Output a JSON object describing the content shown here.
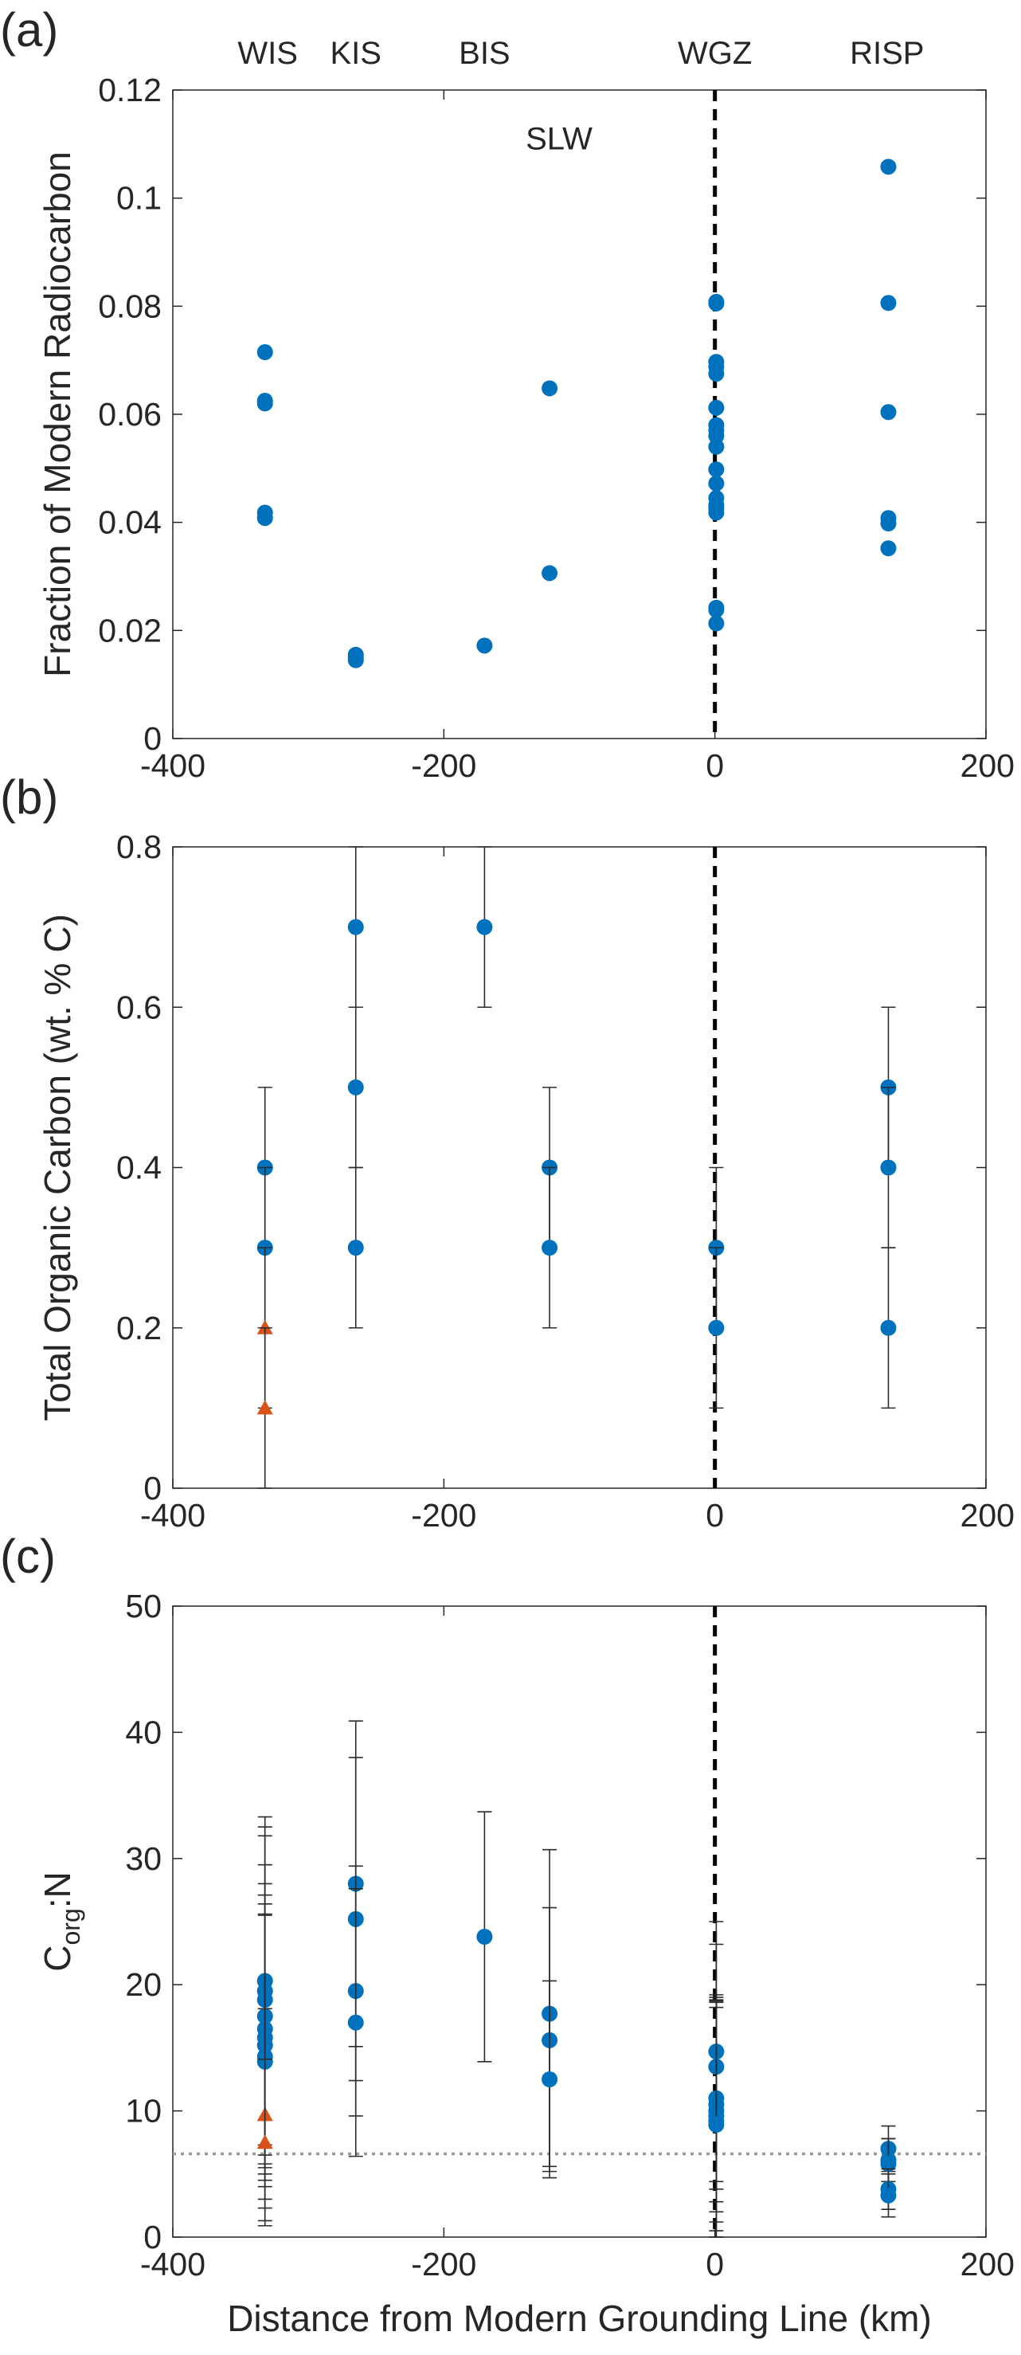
{
  "chart_data": [
    {
      "panel_label": "(a)",
      "type": "scatter",
      "title": "",
      "xlabel": "",
      "ylabel": "Fraction of Modern Radiocarbon",
      "xlim": [
        -400,
        200
      ],
      "ylim": [
        0,
        0.12
      ],
      "xticks": [
        "-400",
        "-200",
        "0",
        "200"
      ],
      "yticks": [
        "0",
        "0.02",
        "0.04",
        "0.06",
        "0.08",
        "0.1",
        "0.12"
      ],
      "grid": false,
      "colors": {
        "marker": "#0072bd",
        "reference_line": "#000000"
      },
      "reference_lines": [
        {
          "orientation": "vertical",
          "x": 0,
          "style": "dashed"
        }
      ],
      "site_labels": [
        {
          "text": "WIS",
          "x": -330
        },
        {
          "text": "KIS",
          "x": -265
        },
        {
          "text": "BIS",
          "x": -170
        },
        {
          "text": "WGZ",
          "x": 0
        },
        {
          "text": "RISP",
          "x": 127
        }
      ],
      "annotations": [
        {
          "text": "SLW",
          "x": -115,
          "y": 0.109
        }
      ],
      "series": [
        {
          "marker": "circle",
          "points": [
            {
              "x": -332,
              "y": 0.0715
            },
            {
              "x": -332,
              "y": 0.0625
            },
            {
              "x": -332,
              "y": 0.062
            },
            {
              "x": -332,
              "y": 0.0418
            },
            {
              "x": -332,
              "y": 0.0408
            },
            {
              "x": -265,
              "y": 0.0155
            },
            {
              "x": -265,
              "y": 0.015
            },
            {
              "x": -265,
              "y": 0.0145
            },
            {
              "x": -170,
              "y": 0.0172
            },
            {
              "x": -122,
              "y": 0.0648
            },
            {
              "x": -122,
              "y": 0.0306
            },
            {
              "x": 1,
              "y": 0.0808
            },
            {
              "x": 1,
              "y": 0.0805
            },
            {
              "x": 1,
              "y": 0.0697
            },
            {
              "x": 1,
              "y": 0.0688
            },
            {
              "x": 1,
              "y": 0.0675
            },
            {
              "x": 1,
              "y": 0.0612
            },
            {
              "x": 1,
              "y": 0.058
            },
            {
              "x": 1,
              "y": 0.057
            },
            {
              "x": 1,
              "y": 0.056
            },
            {
              "x": 1,
              "y": 0.054
            },
            {
              "x": 1,
              "y": 0.0498
            },
            {
              "x": 1,
              "y": 0.0472
            },
            {
              "x": 1,
              "y": 0.0445
            },
            {
              "x": 1,
              "y": 0.0432
            },
            {
              "x": 1,
              "y": 0.0425
            },
            {
              "x": 1,
              "y": 0.0418
            },
            {
              "x": 1,
              "y": 0.0242
            },
            {
              "x": 1,
              "y": 0.0238
            },
            {
              "x": 1,
              "y": 0.0213
            },
            {
              "x": 128,
              "y": 0.1058
            },
            {
              "x": 128,
              "y": 0.0806
            },
            {
              "x": 128,
              "y": 0.0604
            },
            {
              "x": 128,
              "y": 0.0408
            },
            {
              "x": 128,
              "y": 0.0398
            },
            {
              "x": 128,
              "y": 0.0352
            }
          ]
        }
      ]
    },
    {
      "panel_label": "(b)",
      "type": "scatter",
      "title": "",
      "xlabel": "",
      "ylabel": "Total Organic Carbon (wt. % C)",
      "xlim": [
        -400,
        200
      ],
      "ylim": [
        0,
        0.8
      ],
      "xticks": [
        "-400",
        "-200",
        "0",
        "200"
      ],
      "yticks": [
        "0",
        "0.2",
        "0.4",
        "0.6",
        "0.8"
      ],
      "grid": false,
      "colors": {
        "circle": "#0072bd",
        "triangle": "#d95319",
        "reference_line": "#000000"
      },
      "reference_lines": [
        {
          "orientation": "vertical",
          "x": 0,
          "style": "dashed"
        }
      ],
      "series": [
        {
          "marker": "circle",
          "points": [
            {
              "x": -332,
              "y": 0.4,
              "lo": 0.3,
              "hi": 0.5
            },
            {
              "x": -332,
              "y": 0.3,
              "lo": 0.2,
              "hi": 0.4
            },
            {
              "x": -265,
              "y": 0.7,
              "lo": 0.6,
              "hi": 0.8
            },
            {
              "x": -265,
              "y": 0.5,
              "lo": 0.4,
              "hi": 0.6
            },
            {
              "x": -265,
              "y": 0.3,
              "lo": 0.2,
              "hi": 0.4
            },
            {
              "x": -170,
              "y": 0.7,
              "lo": 0.6,
              "hi": 0.8
            },
            {
              "x": -122,
              "y": 0.4,
              "lo": 0.3,
              "hi": 0.5
            },
            {
              "x": -122,
              "y": 0.3,
              "lo": 0.2,
              "hi": 0.4
            },
            {
              "x": 1,
              "y": 0.3,
              "lo": 0.2,
              "hi": 0.4
            },
            {
              "x": 1,
              "y": 0.2,
              "lo": 0.1,
              "hi": 0.3
            },
            {
              "x": 128,
              "y": 0.5,
              "lo": 0.4,
              "hi": 0.6
            },
            {
              "x": 128,
              "y": 0.4,
              "lo": 0.3,
              "hi": 0.5
            },
            {
              "x": 128,
              "y": 0.2,
              "lo": 0.1,
              "hi": 0.3
            }
          ]
        },
        {
          "marker": "triangle",
          "points": [
            {
              "x": -332,
              "y": 0.2,
              "lo": 0.1,
              "hi": 0.3
            },
            {
              "x": -332,
              "y": 0.1,
              "lo": 0.0,
              "hi": 0.2
            }
          ]
        }
      ]
    },
    {
      "panel_label": "(c)",
      "type": "scatter",
      "title": "",
      "xlabel": "Distance from Modern Grounding Line (km)",
      "ylabel": "C",
      "ylabel_subscript": "org",
      "ylabel_suffix": ":N",
      "xlim": [
        -400,
        200
      ],
      "ylim": [
        0,
        50
      ],
      "xticks": [
        "-400",
        "-200",
        "0",
        "200"
      ],
      "yticks": [
        "0",
        "10",
        "20",
        "30",
        "40",
        "50"
      ],
      "grid": false,
      "colors": {
        "circle": "#0072bd",
        "triangle": "#d95319",
        "reference_line": "#000000",
        "threshold_line": "#9a9a9a"
      },
      "reference_lines": [
        {
          "orientation": "vertical",
          "x": 0,
          "style": "dashed"
        },
        {
          "orientation": "horizontal",
          "y": 6.6,
          "style": "dotted"
        }
      ],
      "series": [
        {
          "marker": "circle",
          "points": [
            {
              "x": -332,
              "y": 20.3,
              "lo": 7.3,
              "hi": 33.3
            },
            {
              "x": -332,
              "y": 19.5,
              "lo": 6.5,
              "hi": 32.5
            },
            {
              "x": -332,
              "y": 18.8,
              "lo": 5.8,
              "hi": 31.8
            },
            {
              "x": -332,
              "y": 17.5,
              "lo": 5.5,
              "hi": 29.5
            },
            {
              "x": -332,
              "y": 16.5,
              "lo": 5.0,
              "hi": 28.0
            },
            {
              "x": -332,
              "y": 15.8,
              "lo": 4.5,
              "hi": 27.1
            },
            {
              "x": -332,
              "y": 15.2,
              "lo": 4.0,
              "hi": 26.4
            },
            {
              "x": -332,
              "y": 14.3,
              "lo": 3.0,
              "hi": 25.6
            },
            {
              "x": -332,
              "y": 13.9,
              "lo": 2.3,
              "hi": 25.5
            },
            {
              "x": -265,
              "y": 28.0,
              "lo": 15.1,
              "hi": 40.9
            },
            {
              "x": -265,
              "y": 25.2,
              "lo": 12.4,
              "hi": 38.0
            },
            {
              "x": -265,
              "y": 19.5,
              "lo": 9.6,
              "hi": 29.4
            },
            {
              "x": -265,
              "y": 17.0,
              "lo": 6.4,
              "hi": 27.6
            },
            {
              "x": -170,
              "y": 23.8,
              "lo": 13.9,
              "hi": 33.7
            },
            {
              "x": -122,
              "y": 17.7,
              "lo": 5.6,
              "hi": 30.7
            },
            {
              "x": -122,
              "y": 15.6,
              "lo": 5.2,
              "hi": 26.1
            },
            {
              "x": -122,
              "y": 12.5,
              "lo": 4.7,
              "hi": 20.3
            },
            {
              "x": 1,
              "y": 14.7,
              "lo": 4.4,
              "hi": 25.0
            },
            {
              "x": 1,
              "y": 13.5,
              "lo": 3.8,
              "hi": 23.2
            },
            {
              "x": 1,
              "y": 11.0,
              "lo": 2.8,
              "hi": 19.2
            },
            {
              "x": 1,
              "y": 10.5,
              "lo": 2.0,
              "hi": 19.0
            },
            {
              "x": 1,
              "y": 10.0,
              "lo": 1.2,
              "hi": 18.8
            },
            {
              "x": 1,
              "y": 9.6,
              "lo": 0.5,
              "hi": 18.7
            },
            {
              "x": 1,
              "y": 9.2,
              "lo": 0.0,
              "hi": 18.6
            },
            {
              "x": 1,
              "y": 8.9,
              "lo": 0.0,
              "hi": 18.2
            },
            {
              "x": 128,
              "y": 7.0,
              "lo": 5.2,
              "hi": 8.8
            },
            {
              "x": 128,
              "y": 6.1,
              "lo": 4.4,
              "hi": 7.8
            },
            {
              "x": 128,
              "y": 5.8,
              "lo": 3.8,
              "hi": 7.8
            },
            {
              "x": 128,
              "y": 3.8,
              "lo": 2.2,
              "hi": 5.4
            },
            {
              "x": 128,
              "y": 3.3,
              "lo": 1.6,
              "hi": 5.0
            }
          ]
        },
        {
          "marker": "triangle",
          "points": [
            {
              "x": -332,
              "y": 9.7,
              "lo": 1.3,
              "hi": 18.1
            },
            {
              "x": -332,
              "y": 7.5,
              "lo": 0.9,
              "hi": 14.1
            }
          ]
        }
      ]
    }
  ]
}
